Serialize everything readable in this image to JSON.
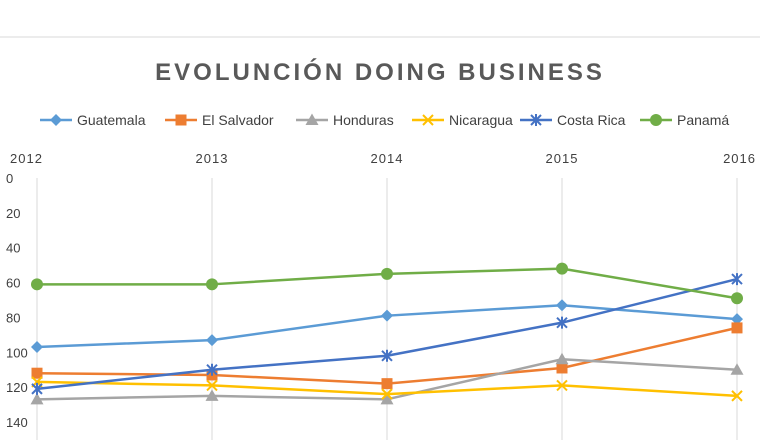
{
  "chart_data": {
    "type": "line",
    "title": "EVOLUNCIÓN DOING BUSINESS",
    "x": [
      "2012",
      "2013",
      "2014",
      "2015",
      "2016"
    ],
    "x_axis_position": "top",
    "y_reversed": true,
    "ylim": [
      0,
      140
    ],
    "yticks": [
      "0",
      "20",
      "40",
      "60",
      "80",
      "100",
      "120",
      "140"
    ],
    "grid": "vertical",
    "legend_position": "top",
    "series": [
      {
        "name": "Guatemala",
        "values": [
          97,
          93,
          79,
          73,
          81
        ],
        "color": "#5B9BD5",
        "marker": "diamond"
      },
      {
        "name": "El Salvador",
        "values": [
          112,
          113,
          118,
          109,
          86
        ],
        "color": "#ED7D31",
        "marker": "square"
      },
      {
        "name": "Honduras",
        "values": [
          127,
          125,
          127,
          104,
          110
        ],
        "color": "#A5A5A5",
        "marker": "triangle"
      },
      {
        "name": "Nicaragua",
        "values": [
          117,
          119,
          124,
          119,
          125
        ],
        "color": "#FFC000",
        "marker": "x"
      },
      {
        "name": "Costa Rica",
        "values": [
          121,
          110,
          102,
          83,
          58
        ],
        "color": "#4472C4",
        "marker": "star"
      },
      {
        "name": "Panamá",
        "values": [
          61,
          61,
          55,
          52,
          69
        ],
        "color": "#70AD47",
        "marker": "circle"
      }
    ]
  }
}
